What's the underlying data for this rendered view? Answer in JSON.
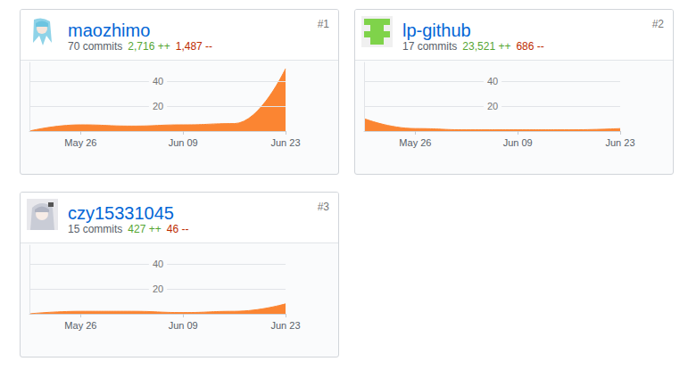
{
  "chart_data": [
    {
      "type": "area",
      "title": "maozhimo",
      "subtitle": "70 commits",
      "annotations": [
        {
          "text": "2,716 ++",
          "color": "#55a532"
        },
        {
          "text": "1,487 --",
          "color": "#bd2c00"
        },
        {
          "text": "#1",
          "color": "#767676"
        }
      ],
      "categories": [
        null,
        "May 26",
        null,
        "Jun 09",
        null,
        "Jun 23"
      ],
      "values": [
        0,
        5,
        4,
        5,
        6,
        50
      ],
      "color": "#fb8532",
      "ylim": [
        0,
        55
      ],
      "yticks": [
        20,
        40
      ],
      "grid": true
    },
    {
      "type": "area",
      "title": "lp-github",
      "subtitle": "17 commits",
      "annotations": [
        {
          "text": "23,521 ++",
          "color": "#55a532"
        },
        {
          "text": "686 --",
          "color": "#bd2c00"
        },
        {
          "text": "#2",
          "color": "#767676"
        }
      ],
      "categories": [
        null,
        "May 26",
        null,
        "Jun 09",
        null,
        "Jun 23"
      ],
      "values": [
        10,
        2,
        1,
        1,
        1,
        2
      ],
      "color": "#fb8532",
      "ylim": [
        0,
        55
      ],
      "yticks": [
        20,
        40
      ],
      "grid": true
    },
    {
      "type": "area",
      "title": "czy15331045",
      "subtitle": "15 commits",
      "annotations": [
        {
          "text": "427 ++",
          "color": "#55a532"
        },
        {
          "text": "46 --",
          "color": "#bd2c00"
        },
        {
          "text": "#3",
          "color": "#767676"
        }
      ],
      "categories": [
        null,
        "May 26",
        null,
        "Jun 09",
        null,
        "Jun 23"
      ],
      "values": [
        0,
        2,
        2,
        1,
        2,
        8
      ],
      "color": "#fb8532",
      "ylim": [
        0,
        55
      ],
      "yticks": [
        20,
        40
      ],
      "grid": true
    }
  ]
}
